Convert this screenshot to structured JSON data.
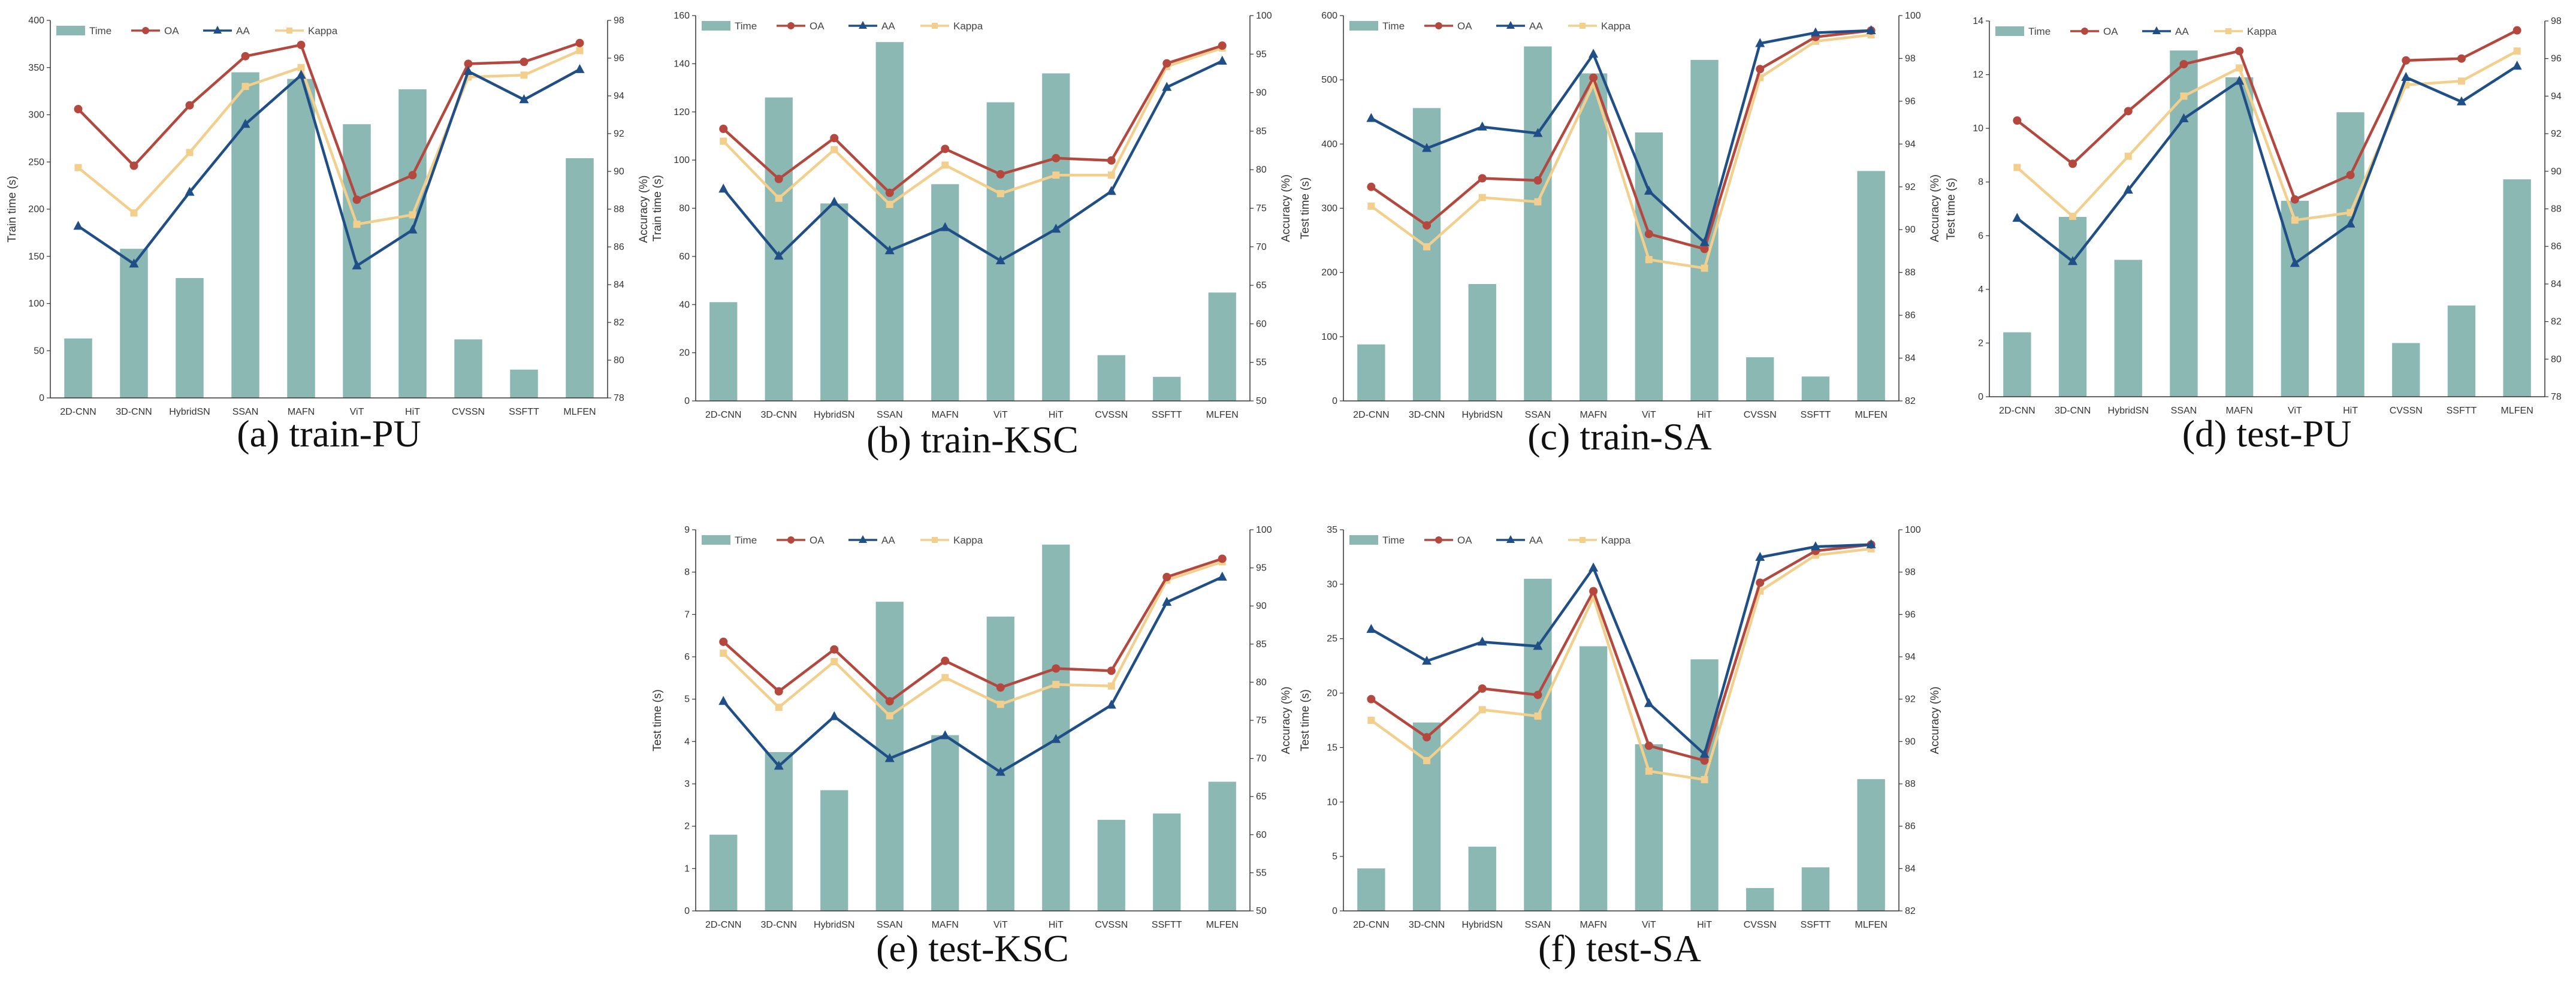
{
  "colors": {
    "time": "#8bb8b2",
    "oa": "#b5483e",
    "aa": "#1f4f86",
    "kappa": "#f2cf8c",
    "axis": "#333333"
  },
  "legend": [
    "Time",
    "OA",
    "AA",
    "Kappa"
  ],
  "chart_data": [
    {
      "type": "bar+line",
      "caption": "(a)  train-PU",
      "categories": [
        "2D-CNN",
        "3D-CNN",
        "HybridSN",
        "SSAN",
        "MAFN",
        "ViT",
        "HiT",
        "CVSSN",
        "SSFTT",
        "MLFEN"
      ],
      "ylabel_left": "Train time (s)",
      "ylabel_right": "Accuracy (%)",
      "ylim_left": [
        0,
        400
      ],
      "yticks_left": [
        0,
        50,
        100,
        150,
        200,
        250,
        300,
        350,
        400
      ],
      "ylim_right": [
        78,
        98
      ],
      "yticks_right": [
        78,
        80,
        82,
        84,
        86,
        88,
        90,
        92,
        94,
        96,
        98
      ],
      "bars": {
        "name": "Time",
        "values": [
          63,
          158,
          127,
          345,
          338,
          290,
          327,
          62,
          30,
          254
        ]
      },
      "series": [
        {
          "name": "OA",
          "values": [
            93.3,
            90.3,
            93.5,
            96.1,
            96.7,
            88.5,
            89.8,
            95.7,
            95.8,
            96.8
          ]
        },
        {
          "name": "AA",
          "values": [
            87.1,
            85.1,
            88.9,
            92.5,
            95.1,
            85.0,
            86.9,
            95.3,
            93.8,
            95.4
          ]
        },
        {
          "name": "Kappa",
          "values": [
            90.2,
            87.8,
            91.0,
            94.5,
            95.5,
            87.2,
            87.7,
            95.0,
            95.1,
            96.4
          ]
        }
      ]
    },
    {
      "type": "bar+line",
      "caption": "(b)  train-KSC",
      "categories": [
        "2D-CNN",
        "3D-CNN",
        "HybridSN",
        "SSAN",
        "MAFN",
        "ViT",
        "HiT",
        "CVSSN",
        "SSFTT",
        "MLFEN"
      ],
      "ylabel_left": "Train time (s)",
      "ylabel_right": "Accuracy (%)",
      "ylim_left": [
        0,
        160
      ],
      "yticks_left": [
        0,
        20,
        40,
        60,
        80,
        100,
        120,
        140,
        160
      ],
      "ylim_right": [
        50,
        100
      ],
      "yticks_right": [
        50,
        55,
        60,
        65,
        70,
        75,
        80,
        85,
        90,
        95,
        100
      ],
      "bars": {
        "name": "Time",
        "values": [
          41,
          126,
          82,
          149,
          90,
          124,
          136,
          19,
          10,
          45
        ]
      },
      "series": [
        {
          "name": "OA",
          "values": [
            85.3,
            78.8,
            84.1,
            77.0,
            82.7,
            79.4,
            81.5,
            81.2,
            93.8,
            96.1
          ]
        },
        {
          "name": "AA",
          "values": [
            77.5,
            68.8,
            75.8,
            69.5,
            72.5,
            68.2,
            72.3,
            77.2,
            90.7,
            94.1
          ]
        },
        {
          "name": "Kappa",
          "values": [
            83.7,
            76.3,
            82.6,
            75.5,
            80.6,
            76.9,
            79.3,
            79.3,
            93.4,
            95.8
          ]
        }
      ]
    },
    {
      "type": "bar+line",
      "caption": "(c)  train-SA",
      "categories": [
        "2D-CNN",
        "3D-CNN",
        "HybridSN",
        "SSAN",
        "MAFN",
        "ViT",
        "HiT",
        "CVSSN",
        "SSFTT",
        "MLFEN"
      ],
      "ylabel_left": "Test time (s)",
      "ylabel_right": "Accuracy (%)",
      "ylim_left": [
        0,
        600
      ],
      "yticks_left": [
        0,
        100,
        200,
        300,
        400,
        500,
        600
      ],
      "ylim_right": [
        82,
        100
      ],
      "yticks_right": [
        82,
        84,
        86,
        88,
        90,
        92,
        94,
        96,
        98,
        100
      ],
      "bars": {
        "name": "Time",
        "values": [
          88,
          456,
          182,
          552,
          510,
          418,
          531,
          68,
          38,
          358
        ]
      },
      "series": [
        {
          "name": "OA",
          "values": [
            92.0,
            90.2,
            92.4,
            92.3,
            97.1,
            89.8,
            89.1,
            97.5,
            99.0,
            99.3
          ]
        },
        {
          "name": "AA",
          "values": [
            95.2,
            93.8,
            94.8,
            94.5,
            98.2,
            91.8,
            89.4,
            98.7,
            99.2,
            99.3
          ]
        },
        {
          "name": "Kappa",
          "values": [
            91.1,
            89.2,
            91.5,
            91.3,
            96.8,
            88.6,
            88.2,
            97.1,
            98.8,
            99.1
          ]
        }
      ]
    },
    {
      "type": "bar+line",
      "caption": "(d)  test-PU",
      "categories": [
        "2D-CNN",
        "3D-CNN",
        "HybridSN",
        "SSAN",
        "MAFN",
        "ViT",
        "HiT",
        "CVSSN",
        "SSFTT",
        "MLFEN"
      ],
      "ylabel_left": "Test time (s)",
      "ylabel_right": "Accuracy (%)",
      "ylim_left": [
        0,
        14
      ],
      "yticks_left": [
        0,
        2,
        4,
        6,
        8,
        10,
        12,
        14
      ],
      "ylim_right": [
        78,
        98
      ],
      "yticks_right": [
        78,
        80,
        82,
        84,
        86,
        88,
        90,
        92,
        94,
        96,
        98
      ],
      "bars": {
        "name": "Time",
        "values": [
          2.4,
          6.7,
          5.1,
          12.9,
          11.9,
          7.3,
          10.6,
          2.0,
          3.4,
          8.1
        ]
      },
      "series": [
        {
          "name": "OA",
          "values": [
            92.7,
            90.4,
            93.2,
            95.7,
            96.4,
            88.5,
            89.8,
            95.9,
            96.0,
            97.5
          ]
        },
        {
          "name": "AA",
          "values": [
            87.5,
            85.2,
            89.0,
            92.8,
            94.8,
            85.1,
            87.2,
            95.0,
            93.7,
            95.6
          ]
        },
        {
          "name": "Kappa",
          "values": [
            90.2,
            87.6,
            90.8,
            94.0,
            95.5,
            87.4,
            87.8,
            94.6,
            94.8,
            96.4
          ]
        }
      ]
    },
    {
      "type": "bar+line",
      "caption": "(e)  test-KSC",
      "categories": [
        "2D-CNN",
        "3D-CNN",
        "HybridSN",
        "SSAN",
        "MAFN",
        "ViT",
        "HiT",
        "CVSSN",
        "SSFTT",
        "MLFEN"
      ],
      "ylabel_left": "Test time (s)",
      "ylabel_right": "Accuracy (%)",
      "ylim_left": [
        0,
        9
      ],
      "yticks_left": [
        0,
        1,
        2,
        3,
        4,
        5,
        6,
        7,
        8,
        9
      ],
      "ylim_right": [
        50,
        100
      ],
      "yticks_right": [
        50,
        55,
        60,
        65,
        70,
        75,
        80,
        85,
        90,
        95,
        100
      ],
      "bars": {
        "name": "Time",
        "values": [
          1.8,
          3.75,
          2.85,
          7.3,
          4.15,
          6.95,
          8.65,
          2.15,
          2.3,
          3.05
        ]
      },
      "series": [
        {
          "name": "OA",
          "values": [
            85.3,
            78.8,
            84.3,
            77.5,
            82.8,
            79.3,
            81.8,
            81.5,
            93.8,
            96.2
          ]
        },
        {
          "name": "AA",
          "values": [
            77.5,
            69.0,
            75.5,
            70.0,
            73.0,
            68.2,
            72.5,
            77.0,
            90.5,
            93.8
          ]
        },
        {
          "name": "Kappa",
          "values": [
            83.8,
            76.7,
            82.7,
            75.6,
            80.6,
            77.1,
            79.7,
            79.5,
            93.4,
            95.8
          ]
        }
      ]
    },
    {
      "type": "bar+line",
      "caption": "(f)  test-SA",
      "categories": [
        "2D-CNN",
        "3D-CNN",
        "HybridSN",
        "SSAN",
        "MAFN",
        "ViT",
        "HiT",
        "CVSSN",
        "SSFTT",
        "MLFEN"
      ],
      "ylabel_left": "Test time (s)",
      "ylabel_right": "Accuracy (%)",
      "ylim_left": [
        0,
        35
      ],
      "yticks_left": [
        0,
        5,
        10,
        15,
        20,
        25,
        30,
        35
      ],
      "ylim_right": [
        82,
        100
      ],
      "yticks_right": [
        82,
        84,
        86,
        88,
        90,
        92,
        94,
        96,
        98,
        100
      ],
      "bars": {
        "name": "Time",
        "values": [
          3.9,
          17.3,
          5.9,
          30.5,
          24.3,
          15.3,
          23.1,
          2.1,
          4.0,
          12.1
        ]
      },
      "series": [
        {
          "name": "OA",
          "values": [
            92.0,
            90.2,
            92.5,
            92.2,
            97.1,
            89.8,
            89.1,
            97.5,
            99.0,
            99.3
          ]
        },
        {
          "name": "AA",
          "values": [
            95.3,
            93.8,
            94.7,
            94.5,
            98.2,
            91.8,
            89.4,
            98.7,
            99.2,
            99.3
          ]
        },
        {
          "name": "Kappa",
          "values": [
            91.0,
            89.1,
            91.5,
            91.2,
            96.8,
            88.6,
            88.2,
            97.1,
            98.8,
            99.1
          ]
        }
      ]
    }
  ]
}
